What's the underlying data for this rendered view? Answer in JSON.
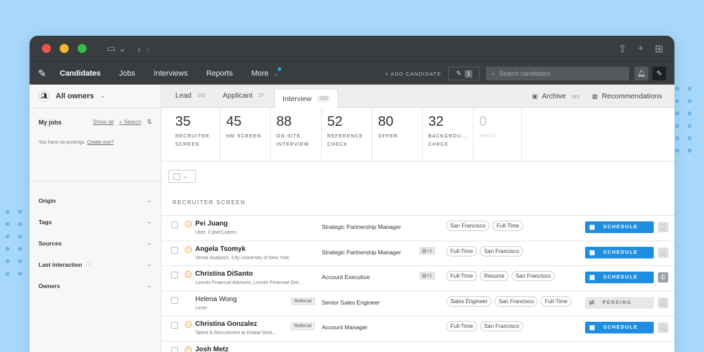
{
  "titlebar": {
    "sidebar_icon": "sidebar-toggle-icon",
    "back_icon": "chevron-left-icon",
    "forward_icon": "chevron-right-icon",
    "share_icon": "share-icon",
    "newtab_icon": "plus-icon",
    "grid_icon": "grid-icon"
  },
  "nav": {
    "items": [
      {
        "label": "Candidates",
        "active": true
      },
      {
        "label": "Jobs"
      },
      {
        "label": "Interviews"
      },
      {
        "label": "Reports"
      },
      {
        "label": "More"
      }
    ],
    "add_candidate": "+ ADD CANDIDATE",
    "drafts_count": "1",
    "search_placeholder": "Search candidates"
  },
  "sidebar": {
    "owners_label": "All owners",
    "myjobs_title": "My jobs",
    "show_all": "Show all",
    "search": "Search",
    "no_postings": "You have no postings.",
    "create_one": "Create one?",
    "filters": [
      "Origin",
      "Tags",
      "Sources",
      "Last interaction",
      "Owners"
    ]
  },
  "tabs": [
    {
      "label": "Lead",
      "count": "262"
    },
    {
      "label": "Applicant",
      "count": "27"
    },
    {
      "label": "Interview",
      "count": "332",
      "active": true
    }
  ],
  "archive": {
    "label": "Archive",
    "count": "343"
  },
  "recommendations": {
    "label": "Recommendations"
  },
  "stages": [
    {
      "num": "35",
      "line1": "RECRUITER",
      "line2": "SCREEN"
    },
    {
      "num": "45",
      "line1": "HM SCREEN",
      "line2": ""
    },
    {
      "num": "88",
      "line1": "ON-SITE",
      "line2": "INTERVIEW"
    },
    {
      "num": "52",
      "line1": "REFERENCE",
      "line2": "CHECK"
    },
    {
      "num": "80",
      "line1": "OFFER",
      "line2": ""
    },
    {
      "num": "32",
      "line1": "BACKGROU...",
      "line2": "CHECK"
    },
    {
      "num": "0",
      "line1": "HIRED",
      "line2": "",
      "dim": true
    }
  ],
  "section_title": "RECRUITER SCREEN",
  "rows": [
    {
      "name": "Pei Juang",
      "sub": "Uber, CyberCoders",
      "referral": "",
      "position": "Strategic Partnership Manager",
      "attachment": "",
      "tags": [
        "San Francisco",
        "Full-Time"
      ],
      "action": "SCHEDULE",
      "owner": ""
    },
    {
      "name": "Angela Tsomyk",
      "sub": "Verisk Analytics, City University of New York",
      "referral": "",
      "position": "Strategic Partnership Manager",
      "attachment": "+1",
      "tags": [
        "Full-Time",
        "San Francisco"
      ],
      "action": "SCHEDULE",
      "owner": ""
    },
    {
      "name": "Christina DiSanto",
      "sub": "Lincoln Financial Advisors, Lincoln Financial Distri...",
      "referral": "",
      "position": "Account Executive",
      "attachment": "+1",
      "tags": [
        "Full-Time",
        "Resume",
        "San Francisco"
      ],
      "action": "SCHEDULE",
      "owner": "C"
    },
    {
      "name": "Helena Wong",
      "sub": "Lever",
      "referral": "Referral",
      "position": "Senior Sales Engineer",
      "attachment": "",
      "tags": [
        "Sales Engineer",
        "San Francisco",
        "Full-Time"
      ],
      "action": "PENDING",
      "owner": ""
    },
    {
      "name": "Christina Gonzalez",
      "sub": "Talent & Recruitment at Global Strat...",
      "referral": "Referral",
      "position": "Account Manager",
      "attachment": "",
      "tags": [
        "Full-Time",
        "San Francisco"
      ],
      "action": "SCHEDULE",
      "owner": ""
    },
    {
      "name": "Josh Metz",
      "sub": "",
      "referral": "",
      "position": "",
      "attachment": "",
      "tags": [],
      "action": "",
      "owner": ""
    }
  ],
  "colors": {
    "accent": "#1e8fe0",
    "chrome": "#3a3d40",
    "background": "#a7d8fb",
    "flag": "#f0a22c"
  }
}
